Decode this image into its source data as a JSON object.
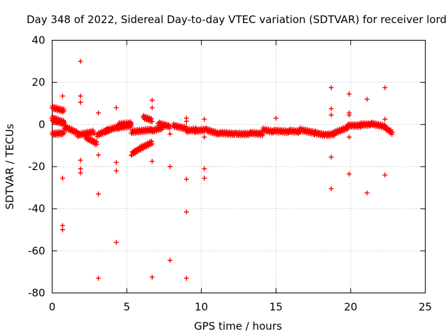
{
  "chart_data": {
    "type": "scatter",
    "title": "Day 348 of 2022, Sidereal Day-to-day VTEC variation (SDTVAR) for receiver lord",
    "xlabel": "GPS time / hours",
    "ylabel": "SDTVAR / TECUs",
    "xlim": [
      0,
      25
    ],
    "ylim": [
      -80,
      40
    ],
    "xticks": [
      "0",
      "5",
      "10",
      "15",
      "20",
      "25"
    ],
    "yticks": [
      "40",
      "20",
      "0",
      "-20",
      "-40",
      "-60",
      "-80"
    ],
    "grid": true,
    "marker": "+",
    "color": "#ff0000",
    "series": [
      {
        "name": "SDTVAR",
        "bands": [
          [
            0.0,
            0.8,
            8.0,
            6.5
          ],
          [
            0.0,
            0.8,
            3.0,
            1.0
          ],
          [
            0.0,
            0.8,
            2.0,
            0.5
          ],
          [
            0.0,
            0.8,
            -4.5,
            -4.0
          ],
          [
            0.8,
            1.7,
            -1.0,
            -4.0
          ],
          [
            1.7,
            2.8,
            -5.0,
            -3.5
          ],
          [
            2.2,
            3.0,
            -6.0,
            -9.0
          ],
          [
            3.0,
            3.8,
            -5.0,
            -2.5
          ],
          [
            3.6,
            4.5,
            -3.0,
            -1.0
          ],
          [
            4.5,
            5.3,
            0.0,
            0.5
          ],
          [
            4.3,
            5.3,
            -1.5,
            -0.5
          ],
          [
            5.3,
            6.0,
            -14.0,
            -11.0
          ],
          [
            6.0,
            6.7,
            -11.0,
            -8.5
          ],
          [
            5.3,
            6.7,
            -3.5,
            -2.5
          ],
          [
            6.1,
            6.7,
            3.5,
            2.0
          ],
          [
            6.7,
            7.4,
            -3.0,
            -1.5
          ],
          [
            7.1,
            7.9,
            0.5,
            -1.0
          ],
          [
            8.1,
            9.0,
            -0.5,
            -2.0
          ],
          [
            9.0,
            9.6,
            -3.0,
            -2.5
          ],
          [
            9.6,
            10.3,
            -3.0,
            -2.5
          ],
          [
            10.3,
            11.2,
            -2.5,
            -4.5
          ],
          [
            11.2,
            12.3,
            -4.0,
            -4.5
          ],
          [
            12.3,
            13.2,
            -4.5,
            -4.5
          ],
          [
            13.2,
            14.1,
            -4.0,
            -4.5
          ],
          [
            14.1,
            14.9,
            -2.5,
            -3.5
          ],
          [
            14.9,
            15.9,
            -3.0,
            -3.5
          ],
          [
            15.9,
            16.6,
            -3.0,
            -3.5
          ],
          [
            16.6,
            17.6,
            -2.5,
            -4.0
          ],
          [
            17.6,
            18.3,
            -4.0,
            -5.0
          ],
          [
            18.3,
            18.9,
            -5.0,
            -4.5
          ],
          [
            18.9,
            19.8,
            -4.0,
            -1.5
          ],
          [
            19.8,
            20.7,
            -0.5,
            -0.5
          ],
          [
            20.7,
            21.3,
            0.0,
            0.0
          ],
          [
            21.3,
            22.3,
            0.5,
            -1.0
          ],
          [
            22.3,
            22.8,
            -1.5,
            -4.0
          ]
        ],
        "outliers": [
          [
            0.7,
            13.5
          ],
          [
            0.7,
            -25.5
          ],
          [
            0.7,
            -48
          ],
          [
            0.7,
            -50
          ],
          [
            1.9,
            30
          ],
          [
            1.9,
            13.5
          ],
          [
            1.9,
            10.5
          ],
          [
            1.9,
            -17
          ],
          [
            1.9,
            -21
          ],
          [
            1.9,
            -23
          ],
          [
            3.1,
            5.5
          ],
          [
            3.1,
            -14.5
          ],
          [
            3.1,
            -33
          ],
          [
            3.1,
            -73
          ],
          [
            4.3,
            8
          ],
          [
            4.3,
            -18
          ],
          [
            4.3,
            -22
          ],
          [
            4.3,
            -56
          ],
          [
            6.7,
            11.5
          ],
          [
            6.7,
            8
          ],
          [
            6.7,
            -17.5
          ],
          [
            6.7,
            -72.5
          ],
          [
            7.9,
            -4.5
          ],
          [
            7.9,
            -20
          ],
          [
            7.9,
            -64.5
          ],
          [
            9.0,
            3
          ],
          [
            9.0,
            1.5
          ],
          [
            9.0,
            -26
          ],
          [
            9.0,
            -41.5
          ],
          [
            9.0,
            -73
          ],
          [
            10.2,
            2.5
          ],
          [
            10.2,
            -6
          ],
          [
            10.2,
            -21
          ],
          [
            10.2,
            -25.5
          ],
          [
            15.0,
            3
          ],
          [
            18.7,
            17.5
          ],
          [
            18.7,
            7.5
          ],
          [
            18.7,
            4.5
          ],
          [
            18.7,
            -15.5
          ],
          [
            18.7,
            -30.5
          ],
          [
            19.9,
            14.5
          ],
          [
            19.9,
            5.5
          ],
          [
            19.9,
            4.5
          ],
          [
            19.9,
            -6
          ],
          [
            19.9,
            -23.5
          ],
          [
            21.1,
            12
          ],
          [
            21.1,
            -32.5
          ],
          [
            22.3,
            17.5
          ],
          [
            22.3,
            2.5
          ],
          [
            22.3,
            -24
          ]
        ]
      }
    ]
  }
}
